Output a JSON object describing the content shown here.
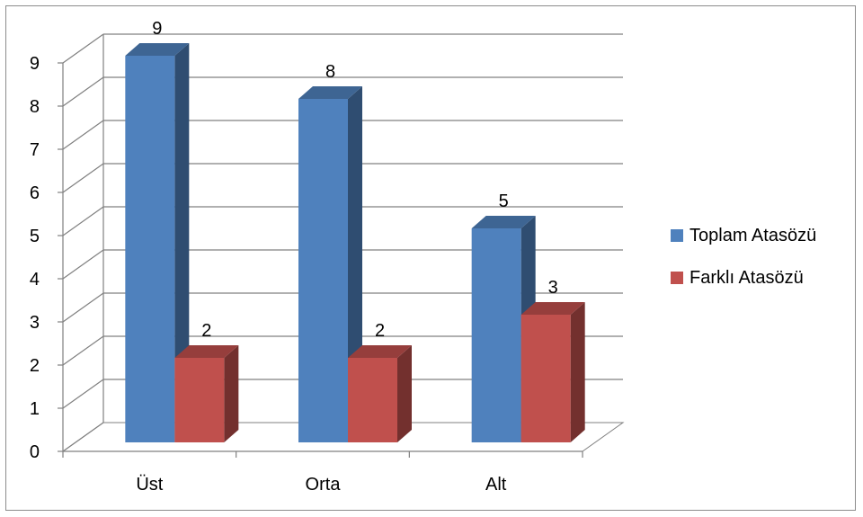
{
  "chart_data": {
    "type": "bar",
    "categories": [
      "Üst",
      "Orta",
      "Alt"
    ],
    "series": [
      {
        "name": "Toplam Atasözü",
        "values": [
          9,
          8,
          5
        ],
        "color": "#4F81BD"
      },
      {
        "name": "Farklı Atasözü",
        "values": [
          2,
          2,
          3
        ],
        "color": "#C0504D"
      }
    ],
    "yticks": [
      "0",
      "1",
      "2",
      "3",
      "4",
      "5",
      "6",
      "7",
      "8",
      "9"
    ],
    "ylim": [
      0,
      9
    ],
    "grid": true,
    "legend_position": "right",
    "style": "3d-clustered-column"
  }
}
